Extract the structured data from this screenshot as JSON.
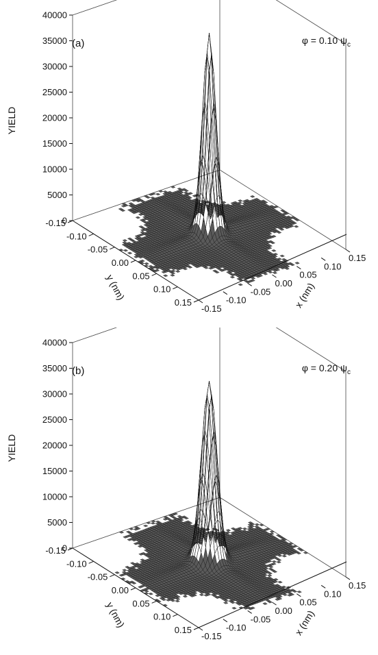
{
  "chart_data": [
    {
      "type": "surface",
      "panel_label": "(a)",
      "annotation": {
        "prefix": "φ = 0.10 ψ",
        "subscript": "c"
      },
      "zlabel": "YIELD",
      "xlabel": "x (nm)",
      "ylabel": "y (nm)",
      "zlim": [
        0,
        40000
      ],
      "z_ticks": [
        "0",
        "5000",
        "10000",
        "15000",
        "20000",
        "25000",
        "30000",
        "35000",
        "40000"
      ],
      "xlim": [
        -0.15,
        0.15
      ],
      "ylim": [
        -0.15,
        0.15
      ],
      "x_ticks": [
        "-0.15",
        "-0.10",
        "-0.05",
        "0.00",
        "0.05",
        "0.10",
        "0.15"
      ],
      "y_ticks": [
        "-0.15",
        "-0.10",
        "-0.05",
        "0.00",
        "0.05",
        "0.10",
        "0.15"
      ],
      "peak": {
        "x": 0.0,
        "y": 0.0,
        "z": 37500
      },
      "grid": false
    },
    {
      "type": "surface",
      "panel_label": "(b)",
      "annotation": {
        "prefix": "φ = 0.20 ψ",
        "subscript": "c"
      },
      "zlabel": "YIELD",
      "xlabel": "x (nm)",
      "ylabel": "y (nm)",
      "zlim": [
        0,
        40000
      ],
      "z_ticks": [
        "0",
        "5000",
        "10000",
        "15000",
        "20000",
        "25000",
        "30000",
        "35000",
        "40000"
      ],
      "xlim": [
        -0.15,
        0.15
      ],
      "ylim": [
        -0.15,
        0.15
      ],
      "x_ticks": [
        "-0.15",
        "-0.10",
        "-0.05",
        "0.00",
        "0.05",
        "0.10",
        "0.15"
      ],
      "y_ticks": [
        "-0.15",
        "-0.10",
        "-0.05",
        "0.00",
        "0.05",
        "0.10",
        "0.15"
      ],
      "peak": {
        "x": 0.0,
        "y": 0.0,
        "z": 33500
      },
      "grid": false
    }
  ]
}
